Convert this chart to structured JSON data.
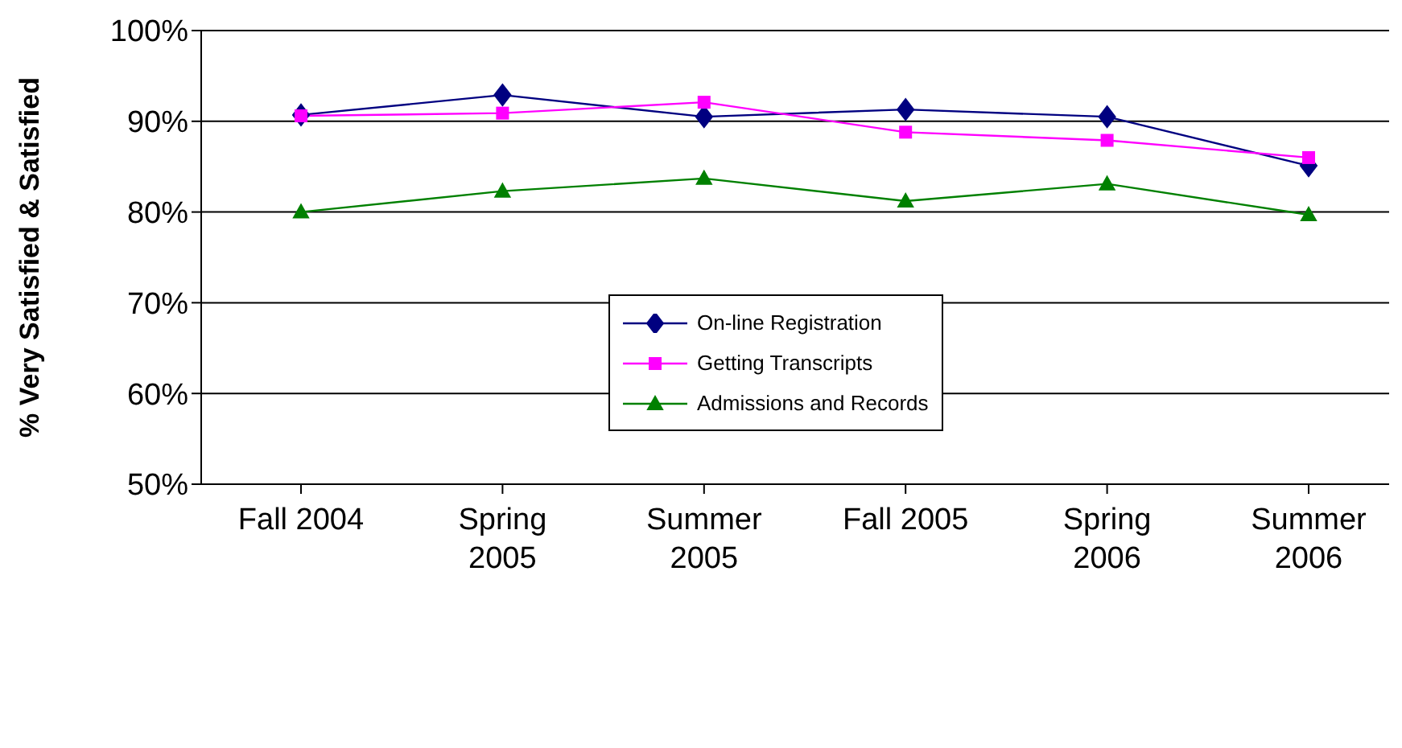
{
  "chart_data": {
    "type": "line",
    "ylabel": "% Very Satisfied & Satisfied",
    "categories": [
      "Fall 2004",
      "Spring 2005",
      "Summer 2005",
      "Fall 2005",
      "Spring 2006",
      "Summer 2006"
    ],
    "series": [
      {
        "name": "On-line Registration",
        "color": "#000080",
        "marker": "diamond",
        "values": [
          90.7,
          92.9,
          90.5,
          91.3,
          90.5,
          85.1
        ]
      },
      {
        "name": "Getting Transcripts",
        "color": "#ff00ff",
        "marker": "square",
        "values": [
          90.6,
          90.9,
          92.1,
          88.8,
          87.9,
          86.0
        ]
      },
      {
        "name": "Admissions and Records",
        "color": "#008000",
        "marker": "triangle",
        "values": [
          80.0,
          82.3,
          83.7,
          81.2,
          83.1,
          79.7
        ]
      }
    ],
    "ylim": [
      50,
      100
    ],
    "yticks": [
      {
        "value": 50,
        "label": "50%"
      },
      {
        "value": 60,
        "label": "60%"
      },
      {
        "value": 70,
        "label": "70%"
      },
      {
        "value": 80,
        "label": "80%"
      },
      {
        "value": 90,
        "label": "90%"
      },
      {
        "value": 100,
        "label": "100%"
      }
    ],
    "grid": "y",
    "legend": "center"
  }
}
